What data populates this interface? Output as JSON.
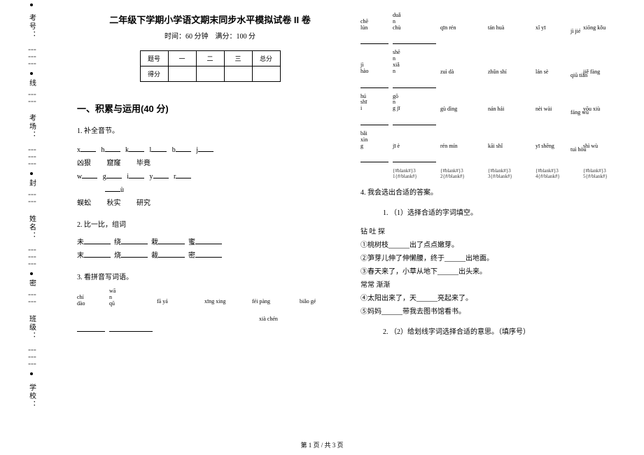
{
  "binding": {
    "labels": [
      "考号：",
      "考场：",
      "姓名：",
      "班级：",
      "学校："
    ],
    "markers": [
      "线",
      "封",
      "密"
    ]
  },
  "header": {
    "title": "二年级下学期小学语文期末同步水平模拟试卷 II 卷",
    "time_label": "时间：60 分钟",
    "score_label": "满分：100 分"
  },
  "score_table": {
    "row1": [
      "题号",
      "一",
      "二",
      "三",
      "总分"
    ],
    "row2_label": "得分"
  },
  "section1": {
    "heading": "一、积累与运用(40 分)",
    "q1": {
      "stem": "1. 补全音节。",
      "line1_letters": [
        "x",
        "h",
        "k",
        "l",
        "b",
        "j"
      ],
      "line1_words": [
        "凶狠",
        "窟窿",
        "毕竟"
      ],
      "line2_letters": [
        "w",
        "g",
        "i",
        "y",
        "r"
      ],
      "line2_u": "ù",
      "line2_words": [
        "蜈蚣",
        "秋实",
        "研究"
      ]
    },
    "q2": {
      "stem": "2. 比一比，组词",
      "row1": [
        "未",
        "绕",
        "栽",
        "蜜"
      ],
      "row2": [
        "末",
        "烧",
        "裁",
        "密"
      ]
    },
    "q3": {
      "stem": "3. 看拼音写词语。",
      "row1_head": [
        "chí",
        "dào"
      ],
      "row1_mid": [
        "wā",
        "n",
        "qū"
      ],
      "row1_items": [
        "fā yá",
        "xīng xing",
        "féi pàng",
        "biǎo gé",
        "xià chén"
      ]
    },
    "q3_grids": [
      {
        "head": [
          "chē",
          "lún"
        ],
        "mid": [
          "duǎ",
          "n",
          "chù"
        ],
        "items": [
          "qīn rén",
          "tán huà",
          "xǐ yī",
          "xiōng kǒu",
          "jì jié"
        ]
      },
      {
        "head": [
          "jì",
          "hào"
        ],
        "mid": [
          "shē",
          "n",
          "xiǎ",
          "n"
        ],
        "items": [
          "zuì dà",
          "zhǔn shí",
          "lán sè",
          "jiě fàng",
          "qiū tiān"
        ]
      },
      {
        "head": [
          "hú",
          "shī",
          "i"
        ],
        "mid": [
          "gō",
          "n",
          "g jī"
        ],
        "items": [
          "gù dìng",
          "nán hái",
          "nèi wài",
          "yōu xiù",
          "fáng wū"
        ]
      },
      {
        "head": [
          "bǎi",
          "xìn",
          "g"
        ],
        "mid": [
          "jī è"
        ],
        "items": [
          "rén mín",
          "kāi shǐ",
          "yī shēng",
          "shì wù",
          "tuì hòu"
        ]
      }
    ],
    "placeholders": [
      "{#blank#}3 1{#/blank#}",
      "{#blank#}3 2{#/blank#}",
      "{#blank#}3 3{#/blank#}",
      "{#blank#}3 4{#/blank#}",
      "{#blank#}3 5{#/blank#}"
    ],
    "q4": {
      "stem": "4. 我会选出合适的答案。",
      "sub1_label": "1.   （1）选择合适的字词填空。",
      "group1": "钻         吐         探",
      "l1": "①桃树枝______出了点点嫩芽。",
      "l2": "②笋芽儿伸了伸懒腰，终于______出地面。",
      "l3": "③春天来了，小草从地下______出头来。",
      "group2": "常常              渐渐",
      "l4": "④太阳出来了，天______亮起来了。",
      "l5": "⑤妈妈______带我去图书馆看书。",
      "sub2_label": "2.   （2）给划线字词选择合适的意思。（填序号）"
    }
  },
  "footer": "第  1  页   /  共  3  页"
}
